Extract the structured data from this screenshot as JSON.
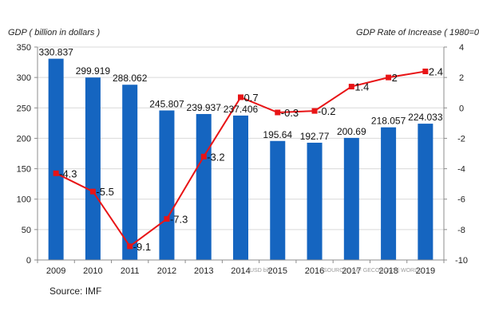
{
  "chart_data": {
    "type": "bar",
    "categories": [
      "2009",
      "2010",
      "2011",
      "2012",
      "2013",
      "2014",
      "2015",
      "2016",
      "2017",
      "2018",
      "2019"
    ],
    "series": [
      {
        "type": "bar",
        "axis": "left",
        "color": "#1565c0",
        "values": [
          330.837,
          299.919,
          288.062,
          245.807,
          239.937,
          237.406,
          195.64,
          192.77,
          200.69,
          218.057,
          224.033
        ],
        "labels": [
          "330.837",
          "299.919",
          "288.062",
          "245.807",
          "239.937",
          "237.406",
          "195.64",
          "192.77",
          "200.69",
          "218.057",
          "224.033"
        ]
      },
      {
        "type": "line",
        "axis": "right",
        "color": "#e81416",
        "values": [
          -4.3,
          -5.5,
          -9.1,
          -7.3,
          -3.2,
          0.7,
          -0.3,
          -0.2,
          1.4,
          2,
          2.4
        ],
        "labels": [
          "-4.3",
          "-5.5",
          "-9.1",
          "-7.3",
          "-3.2",
          "0.7",
          "-0.3",
          "-0.2",
          "1.4",
          "2",
          "2.4"
        ]
      }
    ],
    "ylabel_left": "GDP ( billion in dollars )",
    "ylabel_right": "GDP Rate of Increase ( 1980=0",
    "ylim_left": [
      0,
      350
    ],
    "yticks_left": [
      "0",
      "50",
      "100",
      "150",
      "200",
      "250",
      "300",
      "350"
    ],
    "ylim_right": [
      -10,
      4
    ],
    "yticks_right": [
      "-10",
      "-8",
      "-6",
      "-4",
      "-2",
      "0",
      "2",
      "4"
    ],
    "grid": true,
    "source": "Source: IMF",
    "watermark_left": "USD billi",
    "watermark_right": "SOURCE : IMF GECONOMY | WORLD"
  }
}
